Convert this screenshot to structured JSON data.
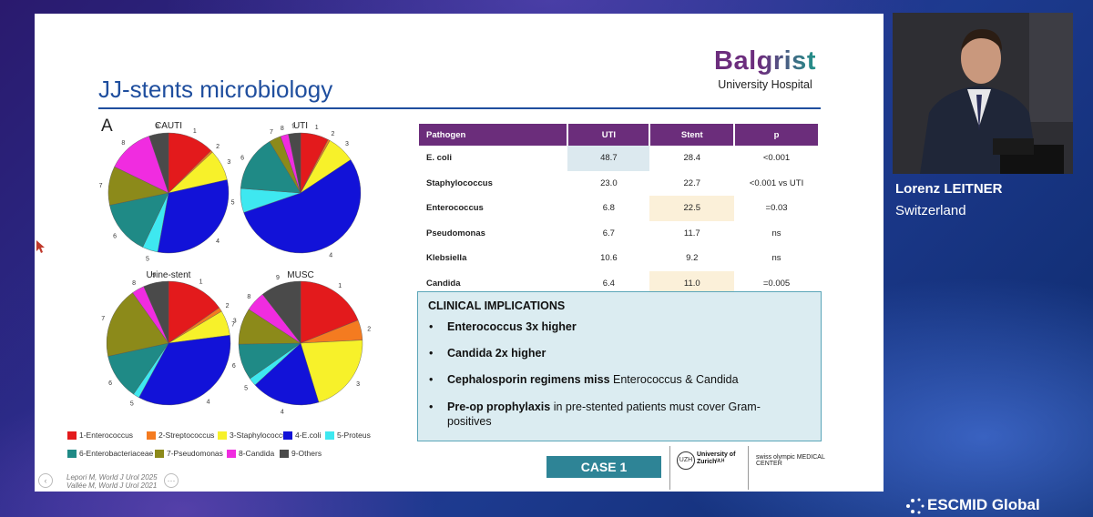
{
  "slide": {
    "title": "JJ-stents microbiology",
    "brand_name": "Balgrist",
    "brand_sub": "University Hospital",
    "panel_letter": "A",
    "case_button": "CASE 1",
    "refs": [
      "Lepori M, World J Urol 2025",
      "Vallée M, World J Urol 2021"
    ],
    "uzh_text": [
      "University of",
      "Zurichᵁᴸᴴ"
    ],
    "uzh_seal": "UZH",
    "swiss_olympic": "swiss olympic MEDICAL CENTER"
  },
  "table": {
    "headers": [
      "Pathogen",
      "UTI",
      "Stent",
      "p"
    ],
    "rows": [
      {
        "pathogen": "E. coli",
        "uti": "48.7",
        "stent": "28.4",
        "p": "<0.001"
      },
      {
        "pathogen": "Staphylococcus",
        "uti": "23.0",
        "stent": "22.7",
        "p": "<0.001 vs UTI"
      },
      {
        "pathogen": "Enterococcus",
        "uti": "6.8",
        "stent": "22.5",
        "p": "=0.03"
      },
      {
        "pathogen": "Pseudomonas",
        "uti": "6.7",
        "stent": "11.7",
        "p": "ns"
      },
      {
        "pathogen": "Klebsiella",
        "uti": "10.6",
        "stent": "9.2",
        "p": "ns"
      },
      {
        "pathogen": "Candida",
        "uti": "6.4",
        "stent": "11.0",
        "p": "=0.005"
      }
    ]
  },
  "implications": {
    "title": "CLINICAL IMPLICATIONS",
    "items": [
      {
        "bold": "Enterococcus 3x higher",
        "rest": ""
      },
      {
        "bold": "Candida 2x higher",
        "rest": ""
      },
      {
        "bold": "Cephalosporin regimens miss",
        "rest": " Enterococcus & Candida"
      },
      {
        "bold": "Pre-op prophylaxis",
        "rest": " in pre-stented patients must cover Gram-positives"
      }
    ]
  },
  "legend": [
    {
      "label": "1-Enterococcus",
      "color": "#e31a1c"
    },
    {
      "label": "2-Streptococcus",
      "color": "#f47b20"
    },
    {
      "label": "3-Staphylococcus",
      "color": "#f7f12a"
    },
    {
      "label": "4-E.coli",
      "color": "#1212d8"
    },
    {
      "label": "5-Proteus",
      "color": "#3ee8f0"
    },
    {
      "label": "6-Enterobacteriaceae",
      "color": "#1f8a86"
    },
    {
      "label": "7-Pseudomonas",
      "color": "#8c8a1a"
    },
    {
      "label": "8-Candida",
      "color": "#f02ce0"
    },
    {
      "label": "9-Others",
      "color": "#4a4a4a"
    }
  ],
  "chart_data": [
    {
      "type": "pie",
      "title": "CAUTI",
      "categories": [
        "1",
        "2",
        "3",
        "4",
        "5",
        "6",
        "7",
        "8",
        "9"
      ],
      "values": [
        12,
        0.5,
        8,
        30,
        4,
        14,
        10,
        12,
        5
      ]
    },
    {
      "type": "pie",
      "title": "UTI",
      "categories": [
        "1",
        "2",
        "3",
        "4",
        "5",
        "6",
        "7",
        "8",
        "9"
      ],
      "values": [
        7,
        0.5,
        7,
        50,
        6,
        14,
        3,
        2,
        3
      ]
    },
    {
      "type": "pie",
      "title": "Urine-stent",
      "categories": [
        "1",
        "2",
        "3",
        "4",
        "5",
        "6",
        "7",
        "8",
        "9"
      ],
      "values": [
        14,
        1,
        6,
        32,
        1.5,
        11,
        17,
        3,
        6
      ]
    },
    {
      "type": "pie",
      "title": "MUSC",
      "categories": [
        "1",
        "2",
        "3",
        "4",
        "5",
        "6",
        "7",
        "8",
        "9"
      ],
      "values": [
        18,
        5,
        20,
        17,
        2,
        9,
        9,
        5,
        10
      ]
    }
  ],
  "speaker": {
    "name": "Lorenz LEITNER",
    "country": "Switzerland"
  },
  "footer": {
    "brand": "ESCMID Global"
  }
}
